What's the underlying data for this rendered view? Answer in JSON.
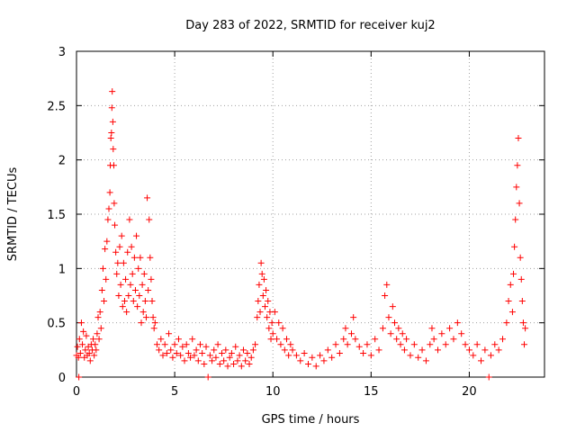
{
  "chart_data": {
    "type": "scatter",
    "title": "Day 283 of 2022, SRMTID for receiver kuj2",
    "xlabel": "GPS time / hours",
    "ylabel": "SRMTID / TECUs",
    "xlim": [
      0,
      23.83
    ],
    "ylim": [
      0,
      3
    ],
    "xticks": [
      0,
      5,
      10,
      15,
      20
    ],
    "yticks": [
      0,
      0.5,
      1,
      1.5,
      2,
      2.5,
      3
    ],
    "grid": true,
    "marker": "+",
    "color": "#ff0000",
    "series": [
      {
        "name": "SRMTID",
        "points": [
          [
            0.0,
            0.2
          ],
          [
            0.05,
            0.28
          ],
          [
            0.1,
            0.18
          ],
          [
            0.12,
            0.0
          ],
          [
            0.15,
            0.35
          ],
          [
            0.2,
            0.22
          ],
          [
            0.25,
            0.5
          ],
          [
            0.3,
            0.3
          ],
          [
            0.35,
            0.42
          ],
          [
            0.4,
            0.18
          ],
          [
            0.45,
            0.25
          ],
          [
            0.5,
            0.38
          ],
          [
            0.55,
            0.2
          ],
          [
            0.6,
            0.28
          ],
          [
            0.65,
            0.22
          ],
          [
            0.7,
            0.15
          ],
          [
            0.75,
            0.3
          ],
          [
            0.8,
            0.25
          ],
          [
            0.85,
            0.35
          ],
          [
            0.9,
            0.2
          ],
          [
            0.95,
            0.3
          ],
          [
            1.0,
            0.25
          ],
          [
            1.05,
            0.4
          ],
          [
            1.1,
            0.55
          ],
          [
            1.15,
            0.35
          ],
          [
            1.2,
            0.6
          ],
          [
            1.25,
            0.45
          ],
          [
            1.3,
            0.8
          ],
          [
            1.35,
            1.0
          ],
          [
            1.4,
            0.7
          ],
          [
            1.45,
            1.18
          ],
          [
            1.5,
            0.9
          ],
          [
            1.55,
            1.25
          ],
          [
            1.6,
            1.45
          ],
          [
            1.65,
            1.55
          ],
          [
            1.7,
            1.7
          ],
          [
            1.72,
            1.95
          ],
          [
            1.75,
            2.2
          ],
          [
            1.78,
            2.25
          ],
          [
            1.8,
            2.48
          ],
          [
            1.82,
            2.63
          ],
          [
            1.85,
            2.35
          ],
          [
            1.87,
            2.1
          ],
          [
            1.9,
            1.95
          ],
          [
            1.92,
            1.6
          ],
          [
            1.95,
            1.4
          ],
          [
            2.0,
            1.15
          ],
          [
            2.05,
            0.95
          ],
          [
            2.1,
            1.05
          ],
          [
            2.15,
            0.75
          ],
          [
            2.2,
            1.2
          ],
          [
            2.25,
            0.85
          ],
          [
            2.3,
            1.3
          ],
          [
            2.35,
            0.65
          ],
          [
            2.4,
            1.05
          ],
          [
            2.45,
            0.7
          ],
          [
            2.5,
            0.9
          ],
          [
            2.55,
            0.6
          ],
          [
            2.6,
            1.15
          ],
          [
            2.65,
            0.75
          ],
          [
            2.7,
            1.45
          ],
          [
            2.75,
            0.85
          ],
          [
            2.8,
            1.2
          ],
          [
            2.85,
            0.95
          ],
          [
            2.9,
            0.7
          ],
          [
            2.95,
            1.1
          ],
          [
            3.0,
            0.8
          ],
          [
            3.05,
            1.3
          ],
          [
            3.1,
            0.65
          ],
          [
            3.15,
            1.0
          ],
          [
            3.2,
            0.75
          ],
          [
            3.25,
            1.1
          ],
          [
            3.3,
            0.5
          ],
          [
            3.35,
            0.85
          ],
          [
            3.4,
            0.6
          ],
          [
            3.45,
            0.95
          ],
          [
            3.5,
            0.7
          ],
          [
            3.55,
            0.55
          ],
          [
            3.6,
            1.65
          ],
          [
            3.65,
            0.8
          ],
          [
            3.7,
            1.45
          ],
          [
            3.75,
            1.1
          ],
          [
            3.8,
            0.9
          ],
          [
            3.85,
            0.7
          ],
          [
            3.9,
            0.55
          ],
          [
            3.95,
            0.45
          ],
          [
            4.0,
            0.5
          ],
          [
            4.1,
            0.3
          ],
          [
            4.2,
            0.25
          ],
          [
            4.3,
            0.35
          ],
          [
            4.4,
            0.2
          ],
          [
            4.5,
            0.3
          ],
          [
            4.6,
            0.22
          ],
          [
            4.7,
            0.4
          ],
          [
            4.8,
            0.25
          ],
          [
            4.9,
            0.18
          ],
          [
            5.0,
            0.3
          ],
          [
            5.1,
            0.22
          ],
          [
            5.2,
            0.35
          ],
          [
            5.3,
            0.2
          ],
          [
            5.4,
            0.28
          ],
          [
            5.5,
            0.15
          ],
          [
            5.6,
            0.3
          ],
          [
            5.7,
            0.22
          ],
          [
            5.8,
            0.18
          ],
          [
            5.9,
            0.35
          ],
          [
            6.0,
            0.2
          ],
          [
            6.1,
            0.25
          ],
          [
            6.2,
            0.15
          ],
          [
            6.3,
            0.3
          ],
          [
            6.4,
            0.22
          ],
          [
            6.5,
            0.12
          ],
          [
            6.6,
            0.28
          ],
          [
            6.7,
            0.0
          ],
          [
            6.8,
            0.2
          ],
          [
            6.9,
            0.15
          ],
          [
            7.0,
            0.25
          ],
          [
            7.1,
            0.18
          ],
          [
            7.2,
            0.3
          ],
          [
            7.3,
            0.12
          ],
          [
            7.4,
            0.22
          ],
          [
            7.5,
            0.15
          ],
          [
            7.6,
            0.25
          ],
          [
            7.7,
            0.1
          ],
          [
            7.8,
            0.18
          ],
          [
            7.9,
            0.22
          ],
          [
            8.0,
            0.12
          ],
          [
            8.1,
            0.28
          ],
          [
            8.2,
            0.15
          ],
          [
            8.3,
            0.2
          ],
          [
            8.4,
            0.1
          ],
          [
            8.5,
            0.25
          ],
          [
            8.6,
            0.15
          ],
          [
            8.7,
            0.22
          ],
          [
            8.8,
            0.12
          ],
          [
            8.9,
            0.18
          ],
          [
            9.0,
            0.25
          ],
          [
            9.1,
            0.3
          ],
          [
            9.2,
            0.55
          ],
          [
            9.25,
            0.7
          ],
          [
            9.3,
            0.85
          ],
          [
            9.35,
            0.6
          ],
          [
            9.4,
            1.05
          ],
          [
            9.45,
            0.95
          ],
          [
            9.5,
            0.75
          ],
          [
            9.55,
            0.9
          ],
          [
            9.6,
            0.65
          ],
          [
            9.65,
            0.8
          ],
          [
            9.7,
            0.55
          ],
          [
            9.75,
            0.7
          ],
          [
            9.8,
            0.45
          ],
          [
            9.85,
            0.6
          ],
          [
            9.9,
            0.35
          ],
          [
            9.95,
            0.5
          ],
          [
            10.0,
            0.4
          ],
          [
            10.1,
            0.6
          ],
          [
            10.2,
            0.35
          ],
          [
            10.3,
            0.5
          ],
          [
            10.4,
            0.3
          ],
          [
            10.5,
            0.45
          ],
          [
            10.6,
            0.25
          ],
          [
            10.7,
            0.35
          ],
          [
            10.8,
            0.2
          ],
          [
            10.9,
            0.3
          ],
          [
            11.0,
            0.25
          ],
          [
            11.2,
            0.2
          ],
          [
            11.4,
            0.15
          ],
          [
            11.6,
            0.22
          ],
          [
            11.8,
            0.12
          ],
          [
            12.0,
            0.18
          ],
          [
            12.2,
            0.1
          ],
          [
            12.4,
            0.2
          ],
          [
            12.6,
            0.15
          ],
          [
            12.8,
            0.25
          ],
          [
            13.0,
            0.18
          ],
          [
            13.2,
            0.3
          ],
          [
            13.4,
            0.22
          ],
          [
            13.6,
            0.35
          ],
          [
            13.7,
            0.45
          ],
          [
            13.8,
            0.3
          ],
          [
            14.0,
            0.4
          ],
          [
            14.1,
            0.55
          ],
          [
            14.2,
            0.35
          ],
          [
            14.4,
            0.28
          ],
          [
            14.6,
            0.22
          ],
          [
            14.8,
            0.3
          ],
          [
            15.0,
            0.2
          ],
          [
            15.2,
            0.35
          ],
          [
            15.4,
            0.25
          ],
          [
            15.6,
            0.45
          ],
          [
            15.7,
            0.75
          ],
          [
            15.8,
            0.85
          ],
          [
            15.9,
            0.55
          ],
          [
            16.0,
            0.4
          ],
          [
            16.1,
            0.65
          ],
          [
            16.2,
            0.5
          ],
          [
            16.3,
            0.35
          ],
          [
            16.4,
            0.45
          ],
          [
            16.5,
            0.3
          ],
          [
            16.6,
            0.4
          ],
          [
            16.7,
            0.25
          ],
          [
            16.8,
            0.35
          ],
          [
            17.0,
            0.2
          ],
          [
            17.2,
            0.3
          ],
          [
            17.4,
            0.18
          ],
          [
            17.6,
            0.25
          ],
          [
            17.8,
            0.15
          ],
          [
            18.0,
            0.3
          ],
          [
            18.1,
            0.45
          ],
          [
            18.2,
            0.35
          ],
          [
            18.4,
            0.25
          ],
          [
            18.6,
            0.4
          ],
          [
            18.8,
            0.3
          ],
          [
            19.0,
            0.45
          ],
          [
            19.2,
            0.35
          ],
          [
            19.4,
            0.5
          ],
          [
            19.6,
            0.4
          ],
          [
            19.8,
            0.3
          ],
          [
            20.0,
            0.25
          ],
          [
            20.2,
            0.2
          ],
          [
            20.4,
            0.3
          ],
          [
            20.6,
            0.15
          ],
          [
            20.8,
            0.25
          ],
          [
            21.0,
            0.0
          ],
          [
            21.1,
            0.2
          ],
          [
            21.3,
            0.3
          ],
          [
            21.5,
            0.25
          ],
          [
            21.7,
            0.35
          ],
          [
            21.9,
            0.5
          ],
          [
            22.0,
            0.7
          ],
          [
            22.1,
            0.85
          ],
          [
            22.2,
            0.6
          ],
          [
            22.25,
            0.95
          ],
          [
            22.3,
            1.2
          ],
          [
            22.35,
            1.45
          ],
          [
            22.4,
            1.75
          ],
          [
            22.45,
            1.95
          ],
          [
            22.5,
            2.2
          ],
          [
            22.55,
            1.6
          ],
          [
            22.6,
            1.1
          ],
          [
            22.65,
            0.9
          ],
          [
            22.7,
            0.7
          ],
          [
            22.75,
            0.5
          ],
          [
            22.8,
            0.3
          ],
          [
            22.85,
            0.45
          ]
        ]
      }
    ]
  }
}
